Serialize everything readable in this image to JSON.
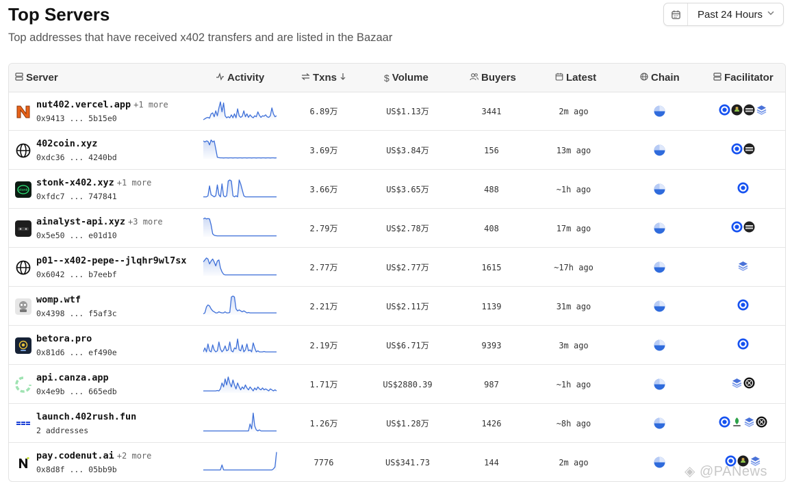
{
  "header": {
    "title": "Top Servers",
    "subtitle": "Top addresses that have received x402 transfers and are listed in the Bazaar",
    "range_label": "Past 24 Hours"
  },
  "columns": {
    "server": "Server",
    "activity": "Activity",
    "txns": "Txns",
    "volume": "Volume",
    "buyers": "Buyers",
    "latest": "Latest",
    "chain": "Chain",
    "facilitator": "Facilitator"
  },
  "rows": [
    {
      "name": "nut402.vercel.app",
      "more": "+1 more",
      "address": "0x9413 ... 5b15e0",
      "txns": "6.89万",
      "volume": "US$1.13万",
      "buyers": "3441",
      "latest": "2m ago",
      "logo": "nut-logo",
      "activity": [
        0,
        0.05,
        0.1,
        0.12,
        0.08,
        0.3,
        0.35,
        0.15,
        0.45,
        0.2,
        0.6,
        0.9,
        0.4,
        0.85,
        0.2,
        0.1,
        0.15,
        0.1,
        0.25,
        0.1,
        0.3,
        0.1,
        0.55,
        0.2,
        0.12,
        0.18,
        0.45,
        0.15,
        0.3,
        0.12,
        0.25,
        0.15,
        0.1,
        0.2,
        0.15,
        0.4,
        0.22,
        0.12,
        0.2,
        0.18,
        0.25,
        0.15,
        0.12,
        0.2,
        0.6,
        0.3,
        0.15,
        0.2
      ],
      "facilitators": [
        "coinbase",
        "payai",
        "daydreams",
        "x402rs"
      ]
    },
    {
      "name": "402coin.xyz",
      "more": "",
      "address": "0xdc36 ... 4240bd",
      "txns": "3.69万",
      "volume": "US$3.84万",
      "buyers": "156",
      "latest": "13m ago",
      "logo": "globe-logo",
      "activity": [
        0.9,
        0.85,
        0.9,
        0.88,
        0.7,
        0.95,
        0.85,
        0.9,
        0.5,
        0.08,
        0.06,
        0.05,
        0.05,
        0.04,
        0.05,
        0.05,
        0.04,
        0.05,
        0.05,
        0.04,
        0.05,
        0.05,
        0.04,
        0.05,
        0.05,
        0.04,
        0.05,
        0.05,
        0.04,
        0.05,
        0.05,
        0.04,
        0.05,
        0.05,
        0.04,
        0.05,
        0.05,
        0.04,
        0.05,
        0.05,
        0.04,
        0.05,
        0.05,
        0.04,
        0.05,
        0.05,
        0.04,
        0.05
      ],
      "facilitators": [
        "coinbase",
        "daydreams"
      ]
    },
    {
      "name": "stonk-x402.xyz",
      "more": "+1 more",
      "address": "0xfdc7 ... 747841",
      "txns": "3.66万",
      "volume": "US$3.65万",
      "buyers": "488",
      "latest": "~1h ago",
      "logo": "stonk-logo",
      "activity": [
        0.05,
        0.05,
        0.05,
        0.1,
        0.6,
        0.15,
        0.1,
        0.05,
        0.1,
        0.65,
        0.15,
        0.05,
        0.7,
        0.1,
        0.05,
        0.1,
        0.85,
        0.9,
        0.85,
        0.1,
        0.05,
        0.1,
        0.05,
        0.9,
        0.7,
        0.4,
        0.1,
        0.05,
        0.05,
        0.05,
        0.05,
        0.05,
        0.05,
        0.05,
        0.05,
        0.05,
        0.05,
        0.05,
        0.05,
        0.05,
        0.05,
        0.05,
        0.05,
        0.05,
        0.05,
        0.05,
        0.05,
        0.05
      ],
      "facilitators": [
        "coinbase"
      ]
    },
    {
      "name": "ainalyst-api.xyz",
      "more": "+3 more",
      "address": "0x5e50 ... e01d10",
      "txns": "2.79万",
      "volume": "US$2.78万",
      "buyers": "408",
      "latest": "17m ago",
      "logo": "ainalyst-logo",
      "activity": [
        0.9,
        0.95,
        0.9,
        0.92,
        0.9,
        0.6,
        0.15,
        0.08,
        0.06,
        0.05,
        0.05,
        0.05,
        0.05,
        0.05,
        0.05,
        0.05,
        0.05,
        0.05,
        0.05,
        0.05,
        0.05,
        0.05,
        0.05,
        0.05,
        0.05,
        0.05,
        0.05,
        0.05,
        0.05,
        0.05,
        0.05,
        0.05,
        0.05,
        0.05,
        0.05,
        0.05,
        0.05,
        0.05,
        0.05,
        0.05,
        0.05,
        0.05,
        0.05,
        0.05,
        0.05,
        0.05,
        0.05,
        0.05
      ],
      "facilitators": [
        "coinbase",
        "daydreams"
      ]
    },
    {
      "name": "p01--x402-pepe--jlqhr9wl7sx",
      "more": "",
      "address": "0x6042 ... b7eebf",
      "txns": "2.77万",
      "volume": "US$2.77万",
      "buyers": "1615",
      "latest": "~17h ago",
      "logo": "globe-logo",
      "activity": [
        0.7,
        0.8,
        0.9,
        0.85,
        0.6,
        0.75,
        0.85,
        0.7,
        0.5,
        0.75,
        0.8,
        0.4,
        0.2,
        0.08,
        0.05,
        0.05,
        0.05,
        0.05,
        0.05,
        0.05,
        0.05,
        0.05,
        0.05,
        0.05,
        0.05,
        0.05,
        0.05,
        0.05,
        0.05,
        0.05,
        0.05,
        0.05,
        0.05,
        0.05,
        0.05,
        0.05,
        0.05,
        0.05,
        0.05,
        0.05,
        0.05,
        0.05,
        0.05,
        0.05,
        0.05,
        0.05,
        0.05,
        0.05
      ],
      "facilitators": [
        "x402rs"
      ]
    },
    {
      "name": "womp.wtf",
      "more": "",
      "address": "0x4398 ... f5af3c",
      "txns": "2.21万",
      "volume": "US$2.11万",
      "buyers": "1139",
      "latest": "31m ago",
      "logo": "womp-logo",
      "activity": [
        0.05,
        0.1,
        0.4,
        0.5,
        0.45,
        0.3,
        0.2,
        0.15,
        0.1,
        0.1,
        0.15,
        0.12,
        0.1,
        0.1,
        0.15,
        0.1,
        0.1,
        0.12,
        0.9,
        0.95,
        0.9,
        0.3,
        0.2,
        0.25,
        0.2,
        0.15,
        0.2,
        0.15,
        0.1,
        0.12,
        0.1,
        0.1,
        0.1,
        0.1,
        0.1,
        0.1,
        0.1,
        0.1,
        0.1,
        0.1,
        0.1,
        0.1,
        0.1,
        0.1,
        0.1,
        0.1,
        0.1,
        0.1
      ],
      "facilitators": [
        "coinbase"
      ]
    },
    {
      "name": "betora.pro",
      "more": "",
      "address": "0x81d6 ... ef490e",
      "txns": "2.19万",
      "volume": "US$6.71万",
      "buyers": "9393",
      "latest": "3m ago",
      "logo": "betora-logo",
      "activity": [
        0.1,
        0.3,
        0.1,
        0.5,
        0.15,
        0.1,
        0.45,
        0.2,
        0.1,
        0.15,
        0.6,
        0.25,
        0.1,
        0.2,
        0.4,
        0.15,
        0.2,
        0.6,
        0.15,
        0.1,
        0.3,
        0.25,
        0.75,
        0.2,
        0.15,
        0.45,
        0.1,
        0.2,
        0.5,
        0.15,
        0.2,
        0.1,
        0.55,
        0.3,
        0.1,
        0.15,
        0.1,
        0.1,
        0.1,
        0.12,
        0.1,
        0.1,
        0.1,
        0.1,
        0.1,
        0.1,
        0.1,
        0.1
      ],
      "facilitators": [
        "coinbase"
      ]
    },
    {
      "name": "api.canza.app",
      "more": "",
      "address": "0x4e9b ... 665edb",
      "txns": "1.71万",
      "volume": "US$2880.39",
      "buyers": "987",
      "latest": "~1h ago",
      "logo": "canza-logo",
      "activity": [
        0.1,
        0.1,
        0.1,
        0.1,
        0.1,
        0.1,
        0.1,
        0.1,
        0.1,
        0.12,
        0.1,
        0.2,
        0.5,
        0.3,
        0.7,
        0.4,
        0.8,
        0.5,
        0.3,
        0.65,
        0.4,
        0.2,
        0.5,
        0.3,
        0.15,
        0.3,
        0.2,
        0.4,
        0.25,
        0.15,
        0.3,
        0.2,
        0.1,
        0.25,
        0.15,
        0.3,
        0.2,
        0.15,
        0.25,
        0.15,
        0.2,
        0.15,
        0.1,
        0.2,
        0.15,
        0.1,
        0.15,
        0.1
      ],
      "facilitators": [
        "x402rs",
        "openx402"
      ]
    },
    {
      "name": "launch.402rush.fun",
      "more": "",
      "address": "2 addresses",
      "txns": "1.26万",
      "volume": "US$1.28万",
      "buyers": "1426",
      "latest": "~8h ago",
      "logo": "rush-logo",
      "activity": [
        0.05,
        0.05,
        0.05,
        0.05,
        0.05,
        0.05,
        0.05,
        0.05,
        0.05,
        0.05,
        0.05,
        0.05,
        0.05,
        0.05,
        0.05,
        0.05,
        0.05,
        0.05,
        0.05,
        0.05,
        0.05,
        0.05,
        0.05,
        0.05,
        0.05,
        0.05,
        0.05,
        0.05,
        0.05,
        0.05,
        0.4,
        0.15,
        0.95,
        0.3,
        0.1,
        0.05,
        0.1,
        0.05,
        0.05,
        0.05,
        0.05,
        0.05,
        0.05,
        0.05,
        0.05,
        0.05,
        0.05,
        0.05
      ],
      "facilitators": [
        "coinbase",
        "thirdweb",
        "x402rs",
        "openx402"
      ]
    },
    {
      "name": "pay.codenut.ai",
      "more": "+2 more",
      "address": "0x8d8f ... 05bb9b",
      "txns": "7776",
      "volume": "US$341.73",
      "buyers": "144",
      "latest": "2m ago",
      "logo": "codenut-logo",
      "activity": [
        0.05,
        0.05,
        0.05,
        0.05,
        0.05,
        0.05,
        0.05,
        0.05,
        0.05,
        0.05,
        0.05,
        0.05,
        0.3,
        0.05,
        0.05,
        0.05,
        0.05,
        0.05,
        0.05,
        0.05,
        0.05,
        0.05,
        0.05,
        0.05,
        0.05,
        0.05,
        0.05,
        0.05,
        0.05,
        0.05,
        0.05,
        0.05,
        0.05,
        0.05,
        0.05,
        0.05,
        0.05,
        0.05,
        0.05,
        0.05,
        0.05,
        0.05,
        0.05,
        0.05,
        0.05,
        0.1,
        0.2,
        0.95
      ],
      "facilitators": [
        "coinbase",
        "payai",
        "x402rs"
      ]
    }
  ],
  "watermark": "@PANews"
}
